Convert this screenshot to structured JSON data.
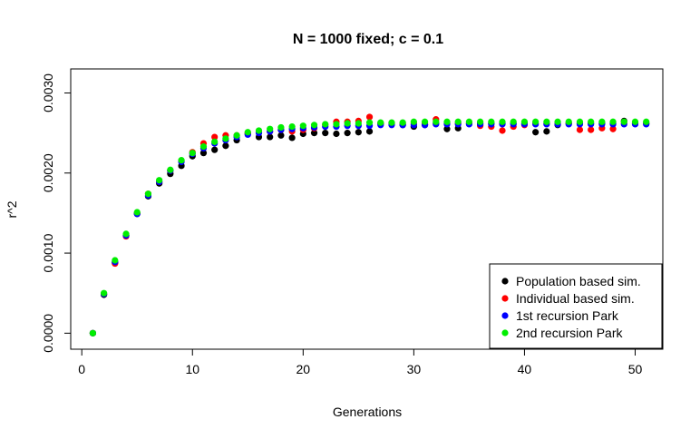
{
  "chart_data": {
    "type": "scatter",
    "title": "N = 1000 fixed; c = 0.1",
    "xlabel": "Generations",
    "ylabel": "r^2",
    "xlim": [
      -1,
      52.5
    ],
    "ylim": [
      -0.0002,
      0.0033
    ],
    "xticks": [
      0,
      10,
      20,
      30,
      40,
      50
    ],
    "xtick_labels": [
      "0",
      "10",
      "20",
      "30",
      "40",
      "50"
    ],
    "yticks": [
      0,
      0.001,
      0.002,
      0.003
    ],
    "ytick_labels": [
      "0.0000",
      "0.0010",
      "0.0020",
      "0.0030"
    ],
    "grid": false,
    "legend_position": "bottom-right",
    "x": [
      1,
      2,
      3,
      4,
      5,
      6,
      7,
      8,
      9,
      10,
      11,
      12,
      13,
      14,
      15,
      16,
      17,
      18,
      19,
      20,
      21,
      22,
      23,
      24,
      25,
      26,
      27,
      28,
      29,
      30,
      31,
      32,
      33,
      34,
      35,
      36,
      37,
      38,
      39,
      40,
      41,
      42,
      43,
      44,
      45,
      46,
      47,
      48,
      49,
      50,
      51
    ],
    "series": [
      {
        "name": "Population based sim.",
        "color": "#000000",
        "values": [
          0.0,
          0.00048,
          0.00088,
          0.00122,
          0.00149,
          0.00171,
          0.00187,
          0.00199,
          0.00209,
          0.00221,
          0.00225,
          0.00229,
          0.00234,
          0.00241,
          0.00249,
          0.00245,
          0.00245,
          0.00247,
          0.00244,
          0.00249,
          0.0025,
          0.0025,
          0.00249,
          0.0025,
          0.00251,
          0.00252,
          0.00262,
          0.00262,
          0.0026,
          0.00258,
          0.0026,
          0.00262,
          0.00255,
          0.00256,
          0.00262,
          0.00262,
          0.00262,
          0.00262,
          0.00262,
          0.00262,
          0.00251,
          0.00252,
          0.0026,
          0.00262,
          0.00262,
          0.00262,
          0.00262,
          0.00262,
          0.00265,
          0.00262,
          0.00262
        ]
      },
      {
        "name": "Individual based sim.",
        "color": "#ff0000",
        "values": [
          0.0,
          0.00049,
          0.00087,
          0.00121,
          0.0015,
          0.00174,
          0.00189,
          0.00203,
          0.00215,
          0.00226,
          0.00237,
          0.00245,
          0.00247,
          0.00247,
          0.0025,
          0.00252,
          0.00252,
          0.00254,
          0.00252,
          0.00254,
          0.00256,
          0.0026,
          0.00264,
          0.00264,
          0.00265,
          0.0027,
          0.00262,
          0.00262,
          0.00262,
          0.00262,
          0.00262,
          0.00267,
          0.00262,
          0.00262,
          0.00262,
          0.00259,
          0.00258,
          0.00253,
          0.00258,
          0.0026,
          0.00262,
          0.00262,
          0.00262,
          0.00262,
          0.00254,
          0.00254,
          0.00256,
          0.00255,
          0.00262,
          0.00262,
          0.00262
        ]
      },
      {
        "name": "1st recursion Park",
        "color": "#0000ff",
        "values": [
          0.0,
          0.00049,
          0.00089,
          0.00122,
          0.00149,
          0.00172,
          0.00189,
          0.00203,
          0.00214,
          0.00224,
          0.00231,
          0.00237,
          0.00241,
          0.00245,
          0.00248,
          0.0025,
          0.00252,
          0.00254,
          0.00255,
          0.00256,
          0.00257,
          0.00258,
          0.00258,
          0.00259,
          0.00259,
          0.00259,
          0.0026,
          0.0026,
          0.0026,
          0.0026,
          0.0026,
          0.00261,
          0.00261,
          0.00261,
          0.00261,
          0.00261,
          0.00261,
          0.00261,
          0.00261,
          0.00261,
          0.00261,
          0.00261,
          0.00261,
          0.00261,
          0.00261,
          0.00261,
          0.00261,
          0.00261,
          0.00261,
          0.00261,
          0.00261
        ]
      },
      {
        "name": "2nd recursion Park",
        "color": "#00ee00",
        "values": [
          0.0,
          0.0005,
          0.00091,
          0.00124,
          0.00151,
          0.00174,
          0.00191,
          0.00204,
          0.00216,
          0.00225,
          0.00233,
          0.00239,
          0.00243,
          0.00247,
          0.00251,
          0.00253,
          0.00255,
          0.00257,
          0.00258,
          0.00259,
          0.0026,
          0.00261,
          0.00261,
          0.00262,
          0.00262,
          0.00263,
          0.00263,
          0.00263,
          0.00263,
          0.00264,
          0.00264,
          0.00264,
          0.00264,
          0.00264,
          0.00264,
          0.00264,
          0.00264,
          0.00264,
          0.00264,
          0.00264,
          0.00264,
          0.00264,
          0.00264,
          0.00264,
          0.00264,
          0.00264,
          0.00264,
          0.00264,
          0.00264,
          0.00264,
          0.00264
        ]
      }
    ]
  }
}
